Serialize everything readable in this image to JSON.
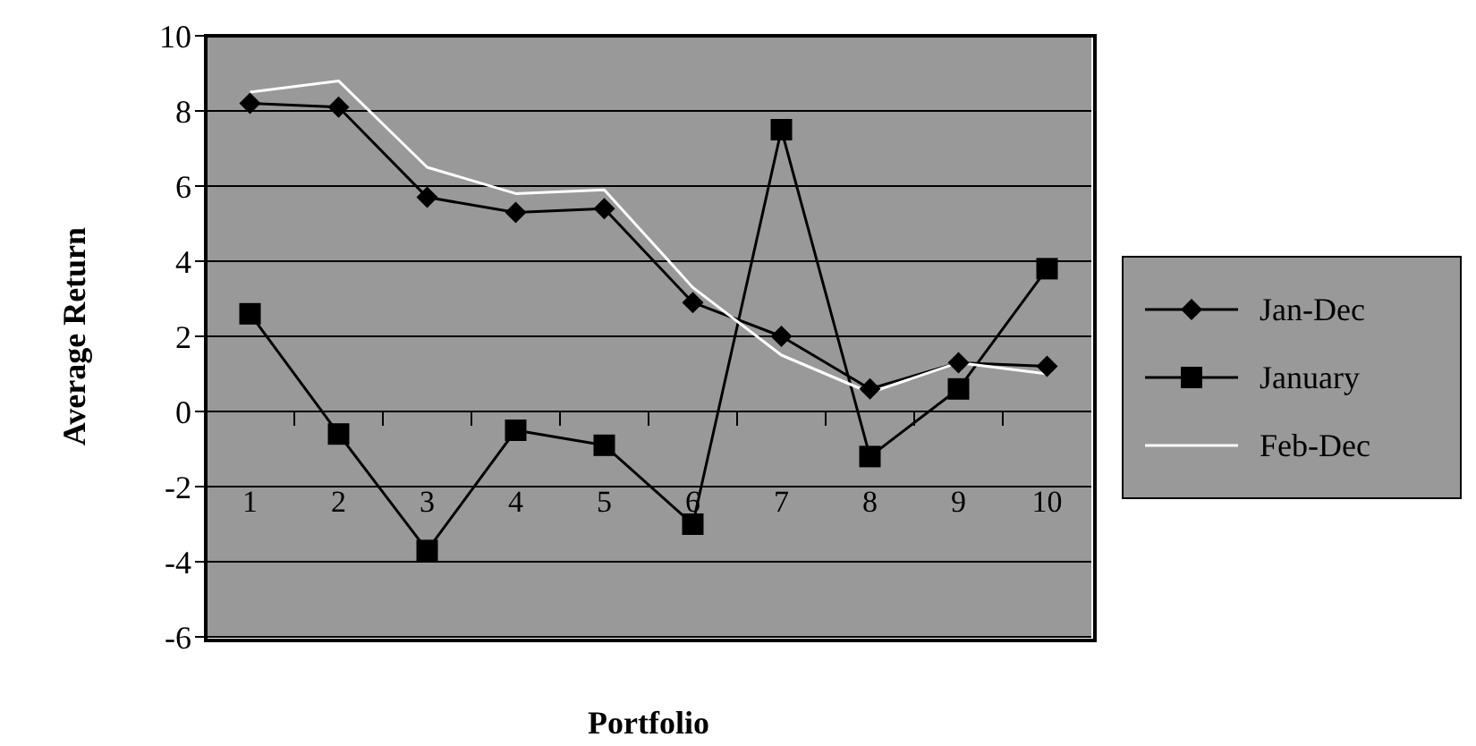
{
  "chart_data": {
    "type": "line",
    "xlabel": "Portfolio",
    "ylabel": "Average Return",
    "categories": [
      "1",
      "2",
      "3",
      "4",
      "5",
      "6",
      "7",
      "8",
      "9",
      "10"
    ],
    "series": [
      {
        "name": "Jan-Dec",
        "color": "#000000",
        "marker": "diamond",
        "values": [
          8.2,
          8.1,
          5.7,
          5.3,
          5.4,
          2.9,
          2.0,
          0.6,
          1.3,
          1.2
        ]
      },
      {
        "name": "January",
        "color": "#000000",
        "marker": "square",
        "values": [
          2.6,
          -0.6,
          -3.7,
          -0.5,
          -0.9,
          -3.0,
          7.5,
          -1.2,
          0.6,
          3.8
        ]
      },
      {
        "name": "Feb-Dec",
        "color": "#ffffff",
        "marker": "none",
        "values": [
          8.5,
          8.8,
          6.5,
          5.8,
          5.9,
          3.3,
          1.5,
          0.5,
          1.3,
          1.0
        ]
      }
    ],
    "ylim": [
      -6,
      10
    ],
    "yticks": [
      -6,
      -4,
      -2,
      0,
      2,
      4,
      6,
      8,
      10
    ],
    "grid": "y",
    "legend": "right",
    "line_style": "solid"
  }
}
